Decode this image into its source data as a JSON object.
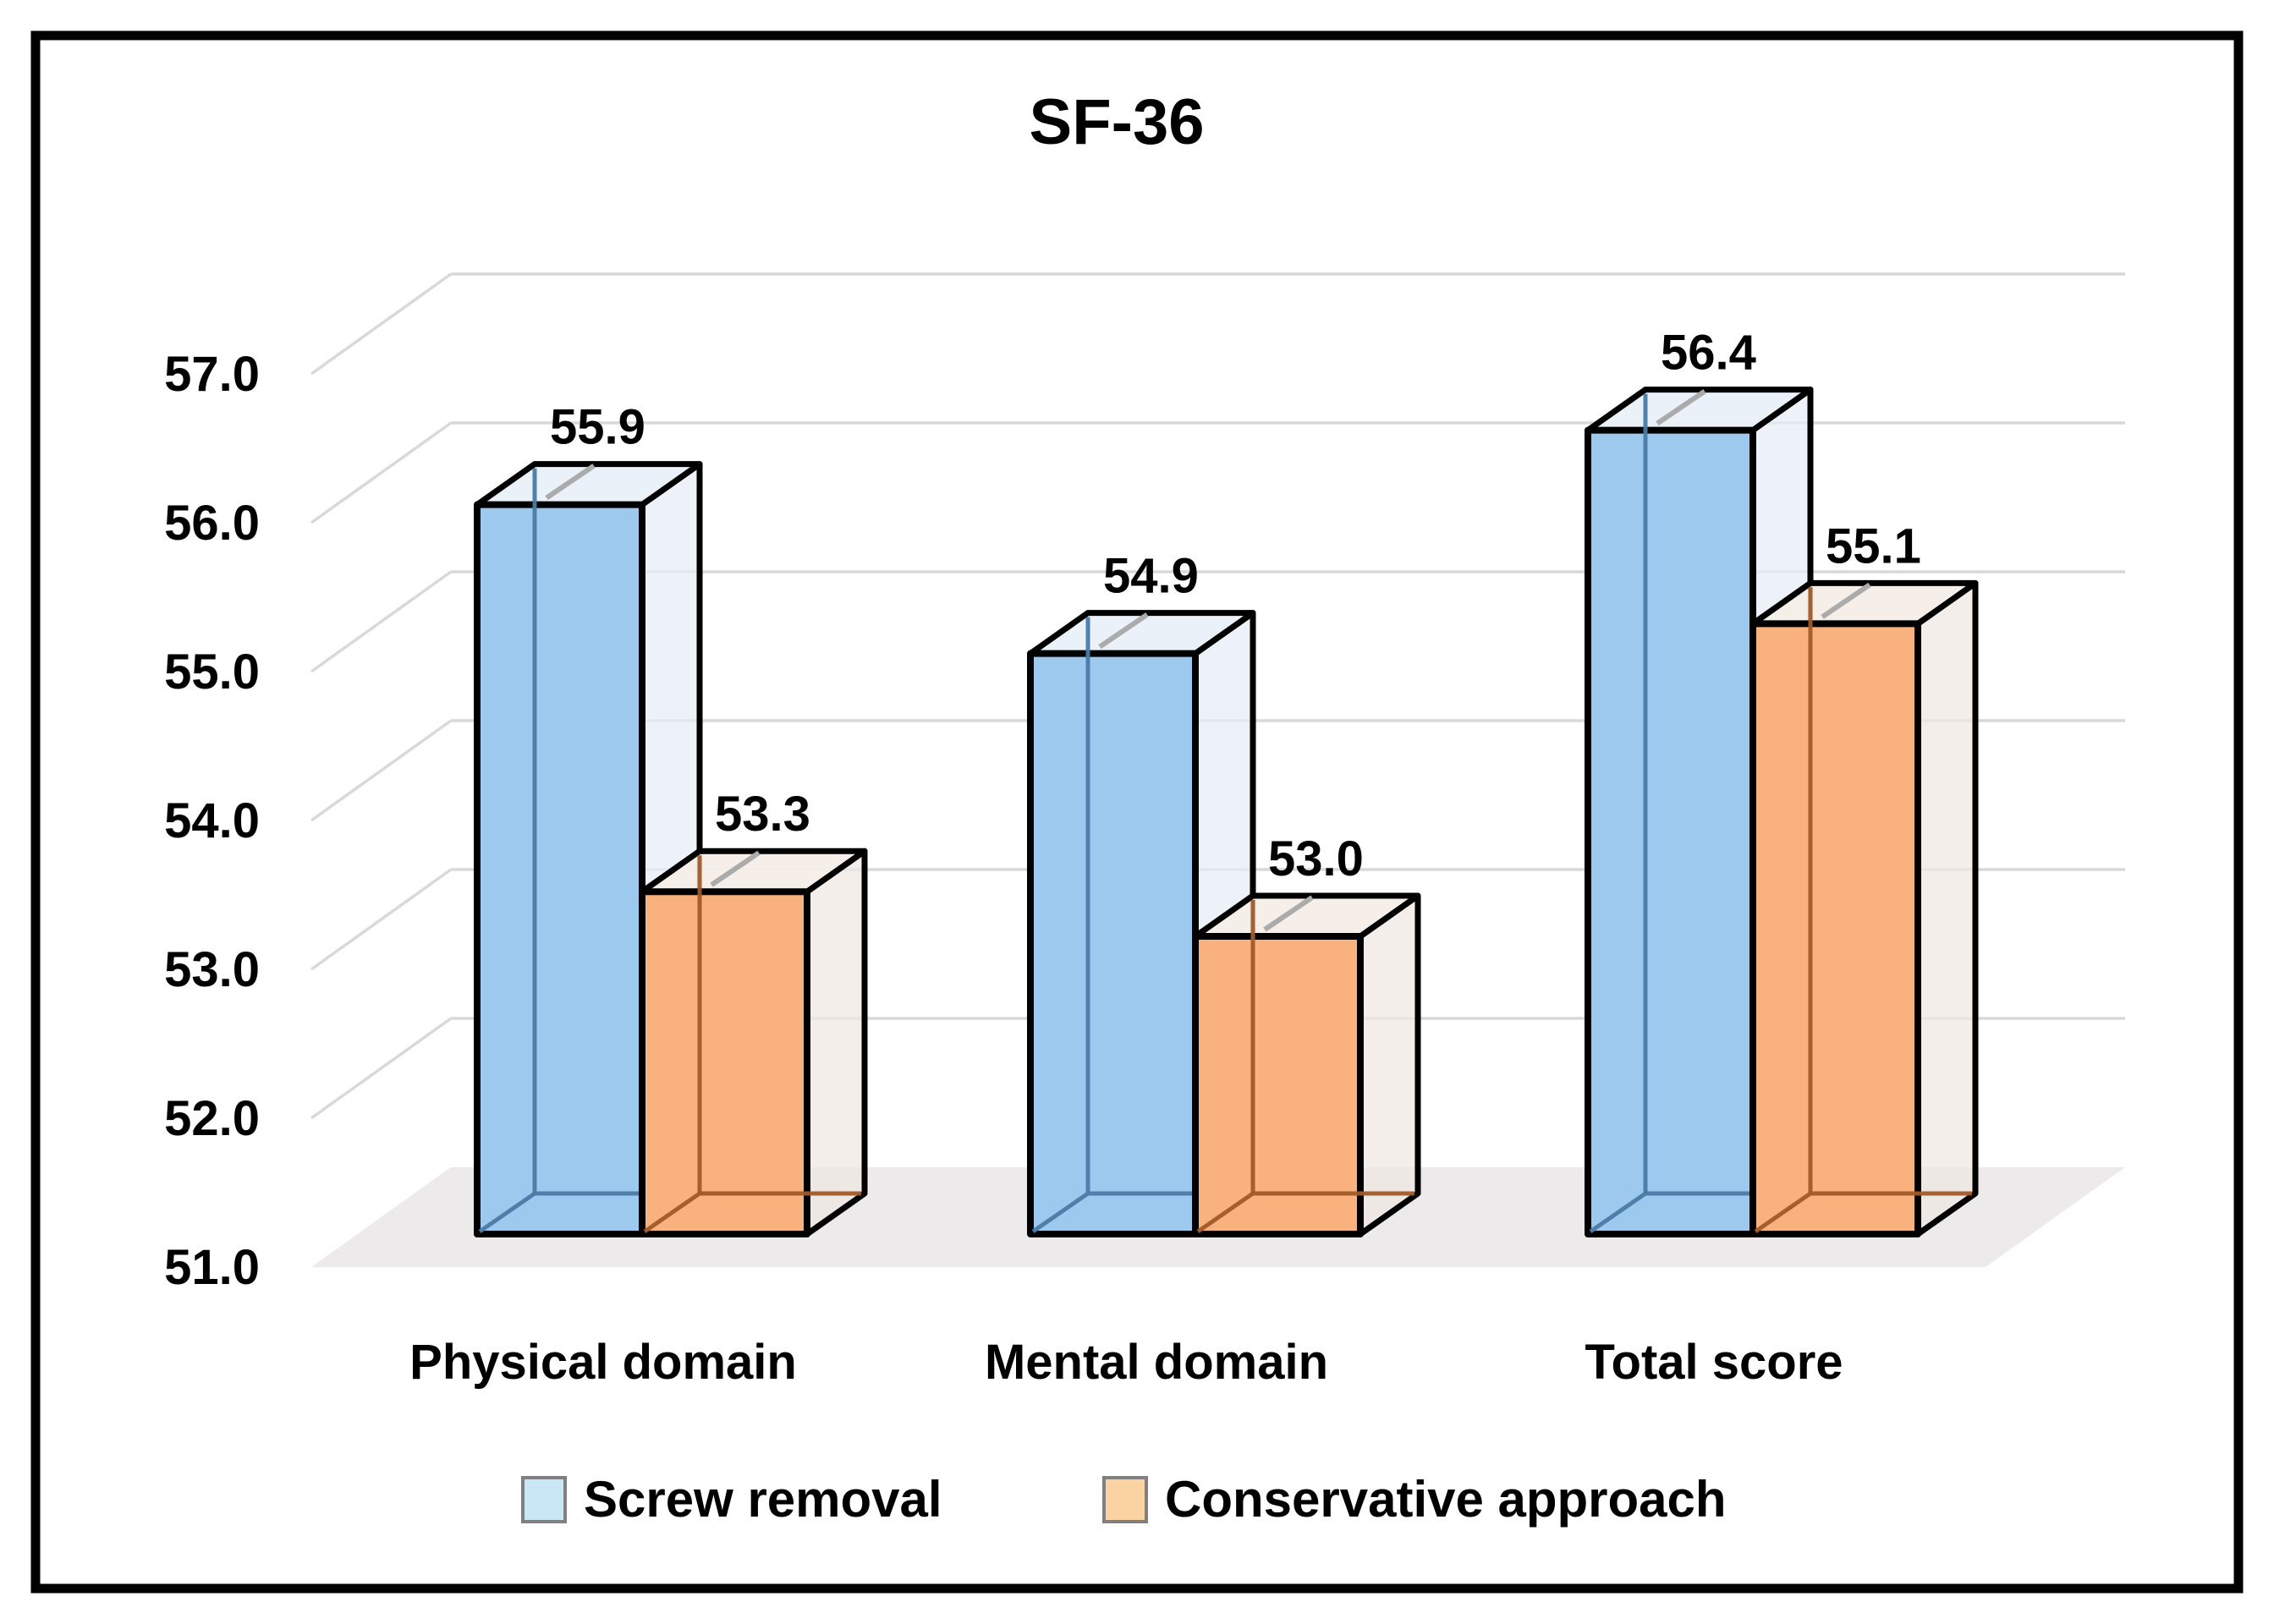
{
  "frame": {
    "background": "#ffffff",
    "border_color": "#000000"
  },
  "chart_data": {
    "type": "bar",
    "variant": "3d-column",
    "title": "SF-36",
    "categories": [
      "Physical domain",
      "Mental domain",
      "Total score"
    ],
    "series": [
      {
        "name": "Screw removal",
        "color": "#9DC9EE",
        "top_color": "#EAF0F8",
        "side_color": "#E6ECF5",
        "edge_color": "#4A7BA6",
        "legend_color": "#C9E7F4",
        "values": [
          55.9,
          54.9,
          56.4
        ],
        "value_labels": [
          "55.9",
          "54.9",
          "56.4"
        ]
      },
      {
        "name": "Conservative approach",
        "color": "#F9B17E",
        "top_color": "#F5EEE8",
        "side_color": "#EFE8E2",
        "edge_color": "#A05A28",
        "legend_color": "#FBD2A2",
        "values": [
          53.3,
          53.0,
          55.1
        ],
        "value_labels": [
          "53.3",
          "53.0",
          "55.1"
        ]
      }
    ],
    "ylim": [
      51.0,
      57.0
    ],
    "ytick_step": 1.0,
    "yticks": [
      "57.0",
      "56.0",
      "55.0",
      "54.0",
      "53.0",
      "52.0",
      "51.0"
    ],
    "grid": true,
    "gridline_color": "#D9D9D9",
    "floor_color": "#ECEAEA",
    "outline_color": "#000000",
    "legend_position": "bottom",
    "legend_swatch_border": "#808080",
    "text_color": "#000000"
  }
}
